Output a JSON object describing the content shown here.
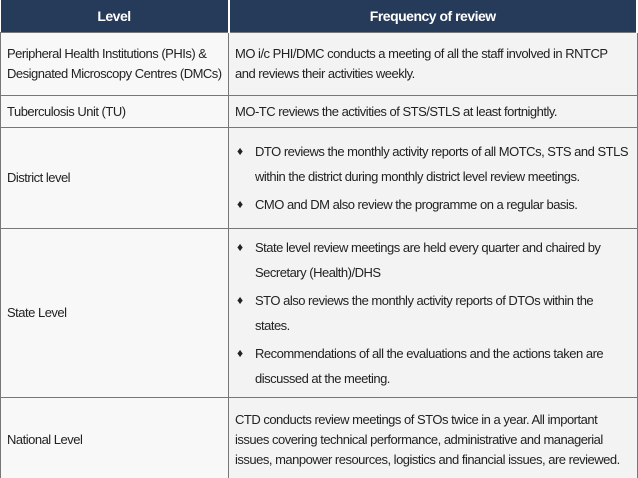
{
  "table": {
    "header": [
      "Level",
      "Frequency of review"
    ],
    "rows": [
      {
        "level": "Peripheral Health Institutions (PHIs) & Designated Microscopy Centres (DMCs)",
        "review": "MO i/c PHI/DMC conducts a meeting of all the staff involved in RNTCP and reviews their activities weekly."
      },
      {
        "level": "Tuberculosis Unit (TU)",
        "review": "MO-TC reviews the activities of STS/STLS at least fortnightly."
      },
      {
        "level": "District level",
        "bullets": [
          "DTO reviews the monthly activity reports of all MOTCs, STS and STLS within the district during monthly district level review meetings.",
          "CMO and DM also review the programme on a regular basis."
        ]
      },
      {
        "level": "State Level",
        "bullets": [
          "State level review meetings are held every quarter and chaired by Secretary (Health)/DHS",
          "STO also reviews the monthly activity reports of DTOs within the states.",
          "Recommendations of all the evaluations and the actions taken are discussed at the meeting."
        ]
      },
      {
        "level": "National Level",
        "review": "CTD conducts review meetings of STOs twice in a year. All important issues covering technical performance, administrative and managerial issues, manpower resources, logistics and financial issues, are reviewed."
      }
    ]
  }
}
